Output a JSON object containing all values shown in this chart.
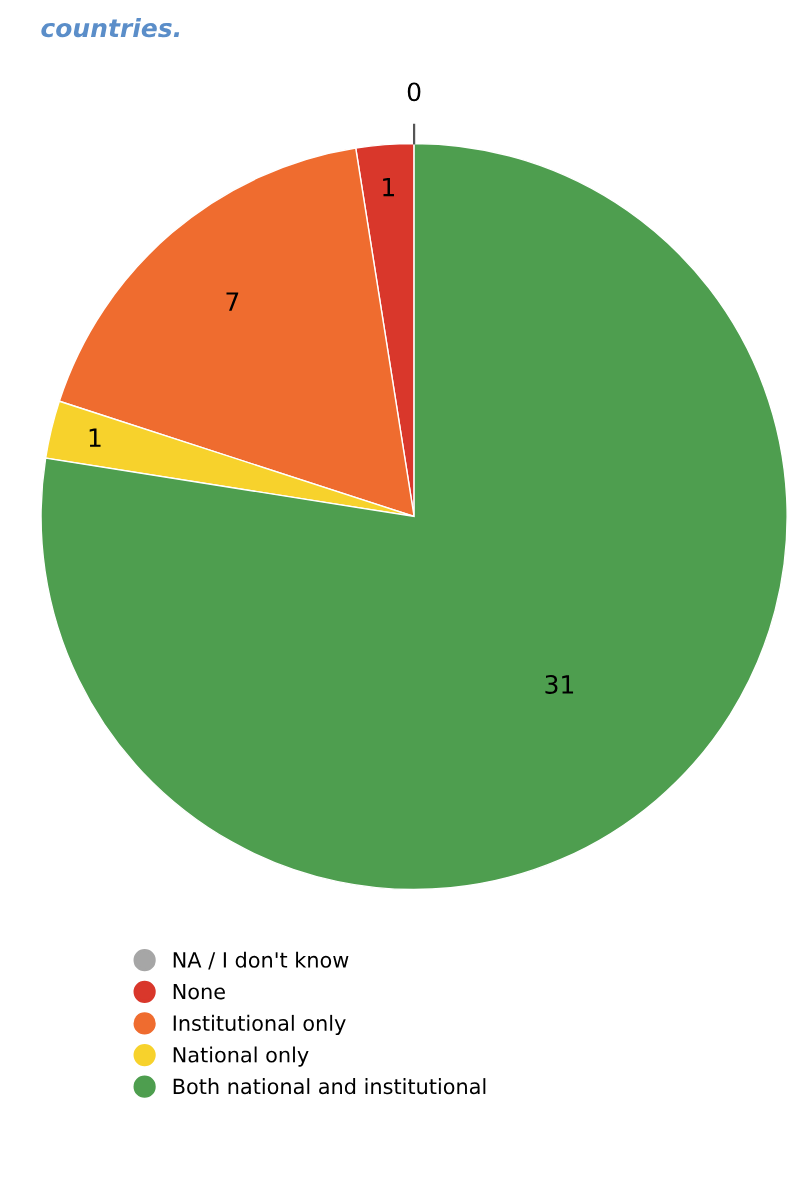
{
  "chart_data": {
    "type": "pie",
    "title": "countries.",
    "categories": [
      "NA / I don't know",
      "None",
      "Institutional only",
      "National only",
      "Both national and institutional"
    ],
    "values": [
      0,
      1,
      7,
      1,
      31
    ],
    "colors": [
      "#a6a6a6",
      "#d9372b",
      "#ef6c2f",
      "#f7d22c",
      "#4e9e4f"
    ],
    "value_labels": [
      "0",
      "1",
      "7",
      "1",
      "31"
    ],
    "legend": "bottom"
  }
}
